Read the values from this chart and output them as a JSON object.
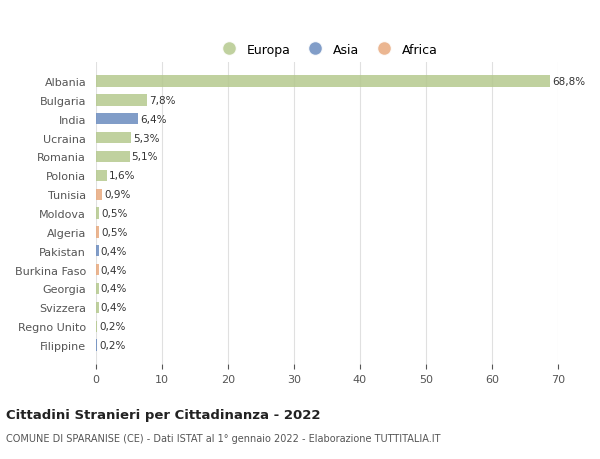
{
  "countries": [
    "Albania",
    "Bulgaria",
    "India",
    "Ucraina",
    "Romania",
    "Polonia",
    "Tunisia",
    "Moldova",
    "Algeria",
    "Pakistan",
    "Burkina Faso",
    "Georgia",
    "Svizzera",
    "Regno Unito",
    "Filippine"
  ],
  "values": [
    68.8,
    7.8,
    6.4,
    5.3,
    5.1,
    1.6,
    0.9,
    0.5,
    0.5,
    0.4,
    0.4,
    0.4,
    0.4,
    0.2,
    0.2
  ],
  "labels": [
    "68,8%",
    "7,8%",
    "6,4%",
    "5,3%",
    "5,1%",
    "1,6%",
    "0,9%",
    "0,5%",
    "0,5%",
    "0,4%",
    "0,4%",
    "0,4%",
    "0,4%",
    "0,2%",
    "0,2%"
  ],
  "continents": [
    "Europa",
    "Europa",
    "Asia",
    "Europa",
    "Europa",
    "Europa",
    "Africa",
    "Europa",
    "Africa",
    "Asia",
    "Africa",
    "Europa",
    "Europa",
    "Europa",
    "Asia"
  ],
  "colors": {
    "Europa": "#b5c98e",
    "Asia": "#6b8cbf",
    "Africa": "#e8a97e"
  },
  "legend_order": [
    "Europa",
    "Asia",
    "Africa"
  ],
  "title": "Cittadini Stranieri per Cittadinanza - 2022",
  "subtitle": "COMUNE DI SPARANISE (CE) - Dati ISTAT al 1° gennaio 2022 - Elaborazione TUTTITALIA.IT",
  "xlim": [
    0,
    70
  ],
  "xticks": [
    0,
    10,
    20,
    30,
    40,
    50,
    60,
    70
  ],
  "background_color": "#ffffff",
  "grid_color": "#e0e0e0"
}
